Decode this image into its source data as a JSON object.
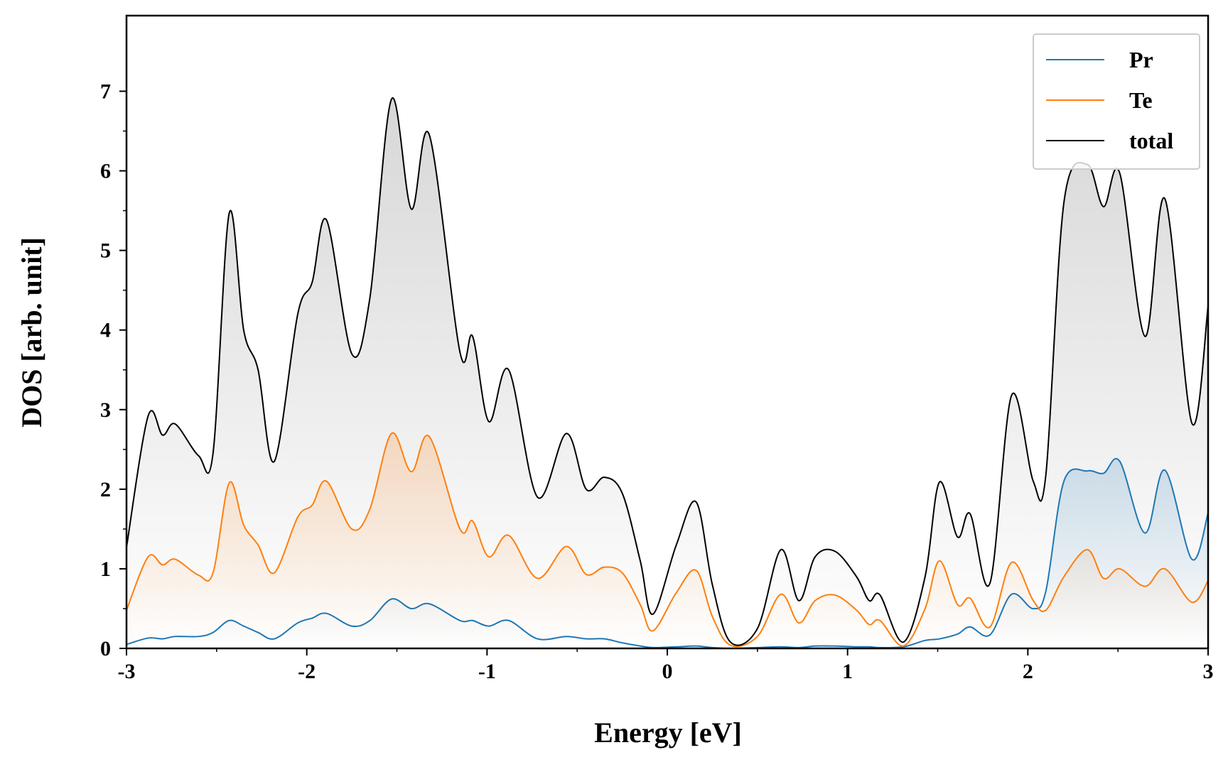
{
  "chart_data": {
    "type": "line",
    "x_label": "Energy [eV]",
    "y_label": "DOS [arb. unit]",
    "x": [
      -3,
      -2.88,
      -2.8,
      -2.73,
      -2.6,
      -2.52,
      -2.43,
      -2.35,
      -2.27,
      -2.18,
      -2.05,
      -1.97,
      -1.89,
      -1.75,
      -1.65,
      -1.53,
      -1.42,
      -1.32,
      -1.15,
      -1.08,
      -0.99,
      -0.88,
      -0.72,
      -0.56,
      -0.45,
      -0.35,
      -0.25,
      -0.15,
      -0.08,
      0.05,
      0.16,
      0.25,
      0.35,
      0.5,
      0.63,
      0.73,
      0.82,
      0.93,
      1.05,
      1.12,
      1.18,
      1.31,
      1.43,
      1.51,
      1.61,
      1.68,
      1.79,
      1.91,
      2.03,
      2.1,
      2.2,
      2.33,
      2.42,
      2.51,
      2.65,
      2.76,
      2.91,
      3
    ],
    "series": [
      {
        "name": "Pr",
        "color": "#1f77b4",
        "values": [
          0.05,
          0.13,
          0.12,
          0.15,
          0.15,
          0.2,
          0.35,
          0.28,
          0.2,
          0.12,
          0.32,
          0.38,
          0.44,
          0.28,
          0.35,
          0.62,
          0.5,
          0.56,
          0.35,
          0.35,
          0.28,
          0.35,
          0.12,
          0.15,
          0.12,
          0.12,
          0.07,
          0.03,
          0.01,
          0.02,
          0.03,
          0.01,
          0,
          0.01,
          0.02,
          0.01,
          0.03,
          0.03,
          0.02,
          0.02,
          0.01,
          0.02,
          0.1,
          0.12,
          0.18,
          0.27,
          0.17,
          0.68,
          0.5,
          0.72,
          2.1,
          2.23,
          2.2,
          2.35,
          1.45,
          2.24,
          1.12,
          1.7
        ]
      },
      {
        "name": "Te",
        "color": "#ff7f0e",
        "values": [
          0.48,
          1.15,
          1.05,
          1.12,
          0.92,
          0.95,
          2.08,
          1.55,
          1.3,
          0.95,
          1.65,
          1.8,
          2.1,
          1.5,
          1.75,
          2.7,
          2.22,
          2.66,
          1.5,
          1.6,
          1.15,
          1.42,
          0.88,
          1.28,
          0.93,
          1.02,
          0.95,
          0.55,
          0.22,
          0.7,
          0.98,
          0.4,
          0.04,
          0.15,
          0.68,
          0.32,
          0.6,
          0.67,
          0.48,
          0.3,
          0.35,
          0.03,
          0.5,
          1.1,
          0.55,
          0.63,
          0.27,
          1.08,
          0.6,
          0.48,
          0.9,
          1.24,
          0.88,
          1.0,
          0.78,
          1.0,
          0.58,
          0.85
        ]
      },
      {
        "name": "total",
        "color": "#000000",
        "values": [
          1.27,
          2.92,
          2.68,
          2.82,
          2.42,
          2.45,
          5.47,
          4.0,
          3.5,
          2.35,
          4.2,
          4.6,
          5.38,
          3.7,
          4.4,
          6.9,
          5.52,
          6.45,
          3.72,
          3.92,
          2.85,
          3.5,
          1.9,
          2.7,
          2.0,
          2.15,
          1.95,
          1.1,
          0.43,
          1.3,
          1.84,
          0.8,
          0.08,
          0.25,
          1.24,
          0.6,
          1.15,
          1.22,
          0.9,
          0.6,
          0.67,
          0.08,
          0.9,
          2.09,
          1.4,
          1.69,
          0.82,
          3.18,
          2.1,
          2.18,
          5.6,
          6.08,
          5.55,
          5.97,
          3.92,
          5.65,
          2.83,
          4.3
        ]
      }
    ],
    "fill": true,
    "xlim": [
      -3,
      3
    ],
    "ylim": [
      0,
      7.95
    ],
    "xticks": [
      -3,
      -2,
      -1,
      0,
      1,
      2,
      3
    ],
    "yticks": [
      0,
      1,
      2,
      3,
      4,
      5,
      6,
      7
    ],
    "minor_ticks": true,
    "legend": "upper right"
  }
}
